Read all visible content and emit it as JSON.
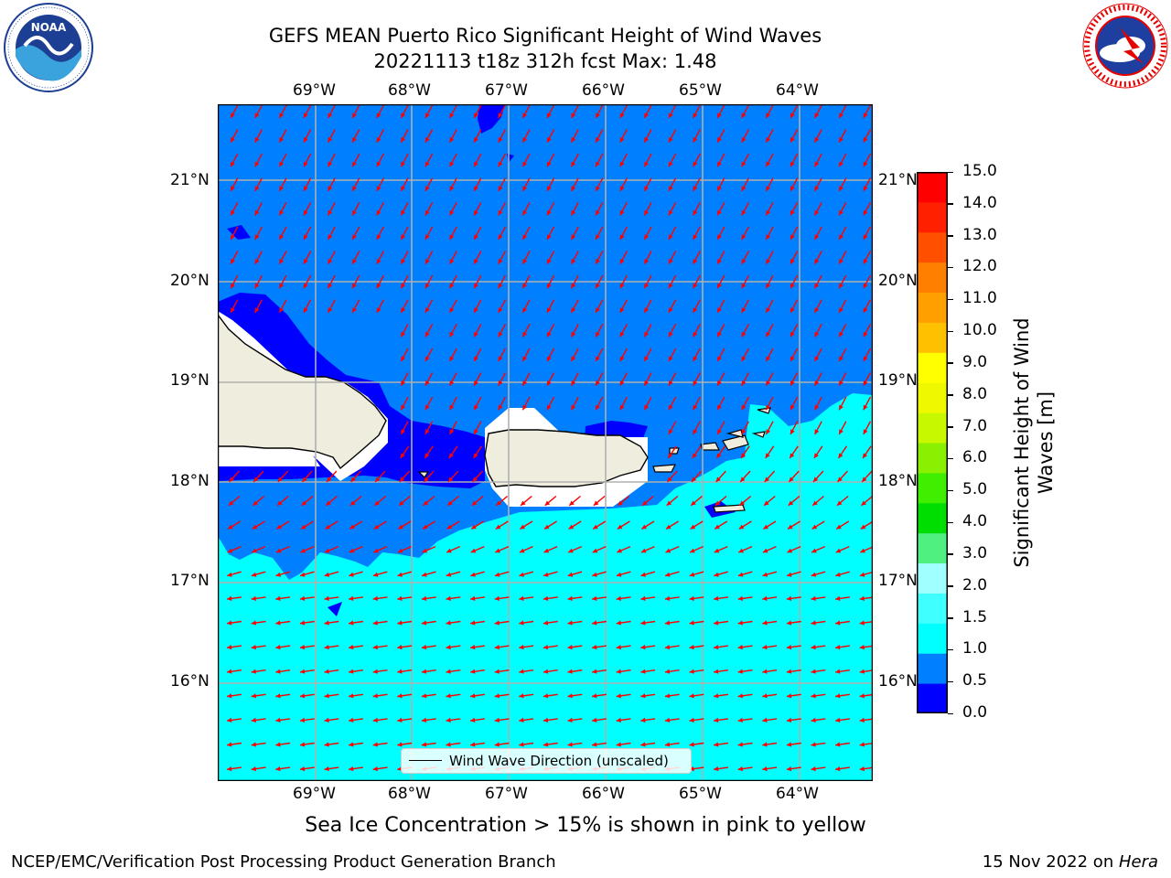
{
  "title": {
    "line1": "GEFS MEAN Puerto Rico Significant Height of Wind Waves",
    "line2": "20221113 t18z 312h fcst   Max: 1.48"
  },
  "logos": {
    "left": "noaa-logo",
    "right": "national-weather-service-logo",
    "left_text": "NOAA",
    "left_ring": "NATIONAL OCEANIC AND ATMOSPHERIC ADMINISTRATION · U.S. DEPARTMENT OF COMMERCE",
    "right_ring": "NATIONAL WEATHER SERVICE"
  },
  "map": {
    "lon_ticks": [
      "69°W",
      "68°W",
      "67°W",
      "66°W",
      "65°W",
      "64°W"
    ],
    "lat_ticks": [
      "21°N",
      "20°N",
      "19°N",
      "18°N",
      "17°N",
      "16°N"
    ],
    "lon_range": [
      -70.0,
      -63.25
    ],
    "lat_range": [
      15.0,
      21.75
    ],
    "grid": true,
    "arrow_color": "#ff0000",
    "coast_color": "#000000",
    "land_color": "#efedde"
  },
  "chart_data": {
    "type": "heatmap",
    "variable": "Significant Height of Wind Waves",
    "units": "m",
    "max": 1.48,
    "regions": [
      {
        "description": "north open ocean",
        "range_m": [
          0.5,
          1.0
        ]
      },
      {
        "description": "near coasts north of islands",
        "range_m": [
          0.0,
          0.5
        ]
      },
      {
        "description": "Caribbean south of ~17.5°N",
        "range_m": [
          1.0,
          1.5
        ]
      }
    ]
  },
  "colorbar": {
    "label": "Significant Height of Wind Waves [m]",
    "ticks": [
      "15.0",
      "14.0",
      "13.0",
      "12.0",
      "11.0",
      "10.0",
      "9.0",
      "8.0",
      "7.0",
      "6.0",
      "5.0",
      "4.0",
      "3.0",
      "2.0",
      "1.5",
      "1.0",
      "0.5",
      "0.0"
    ],
    "colors_bottom_to_top": [
      "#0000ff",
      "#0080ff",
      "#00ffff",
      "#40ffff",
      "#a0ffff",
      "#50f080",
      "#00dd00",
      "#40ee00",
      "#88f000",
      "#c8f800",
      "#f0f800",
      "#ffff00",
      "#ffc000",
      "#ffa000",
      "#ff8000",
      "#ff5000",
      "#ff2000",
      "#ff0000"
    ]
  },
  "legend": {
    "label": "Wind Wave Direction (unscaled)"
  },
  "note": "Sea Ice Concentration > 15% is shown in pink to yellow",
  "footer": {
    "left": "NCEP/EMC/Verification Post Processing Product Generation Branch",
    "right_prefix": "15 Nov 2022 on ",
    "right_italic": "Hera"
  }
}
